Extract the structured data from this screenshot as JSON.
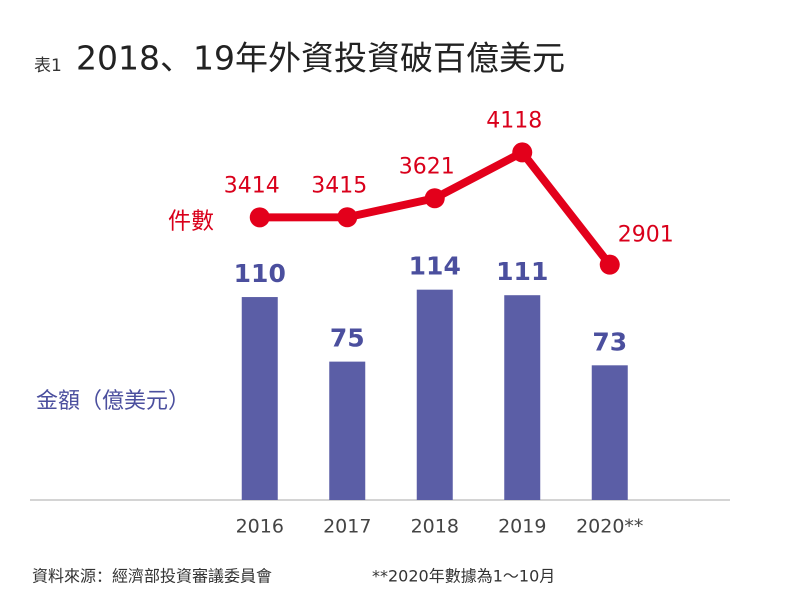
{
  "chart_data": {
    "type": "bar",
    "table_label": "表1",
    "title": "2018、19年外資投資破百億美元",
    "categories": [
      "2016",
      "2017",
      "2018",
      "2019",
      "2020**"
    ],
    "series": [
      {
        "name": "金額（億美元）",
        "type": "bar",
        "color": "#5b5ea6",
        "values": [
          110,
          75,
          114,
          111,
          73
        ]
      },
      {
        "name": "件數",
        "type": "line",
        "axis": "y2",
        "color": "#e3001b",
        "values": [
          3414,
          3415,
          3621,
          4118,
          2901
        ]
      }
    ],
    "ylim": [
      0,
      200
    ],
    "y2lim": [
      350,
      4350
    ],
    "source": "資料來源：經濟部投資審議委員會",
    "note": "**2020年數據為1～10月"
  }
}
